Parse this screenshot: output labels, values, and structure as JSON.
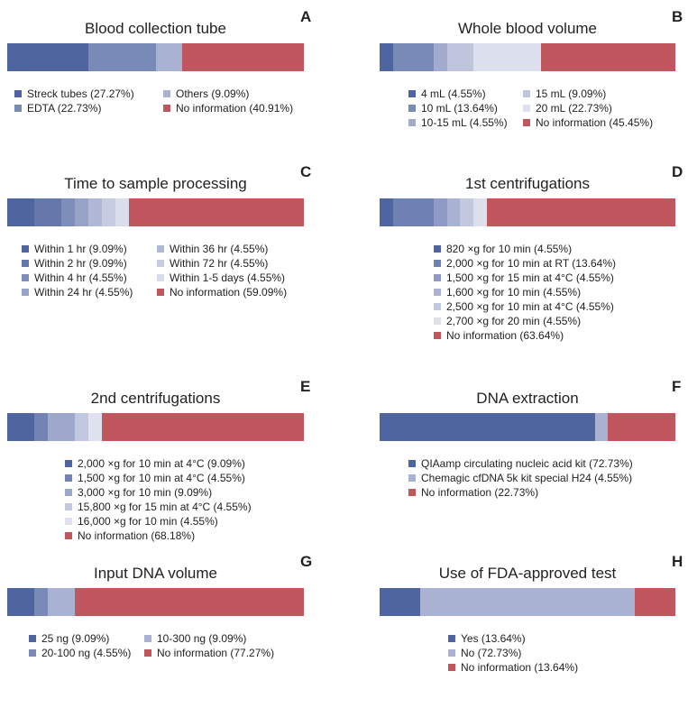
{
  "chart_data": [
    {
      "type": "bar",
      "letter": "A",
      "title": "Blood collection tube",
      "series": [
        {
          "name": "Streck tubes",
          "label": "Streck tubes (27.27%)",
          "value": 27.27,
          "color": "#4e65a0"
        },
        {
          "name": "EDTA",
          "label": "EDTA (22.73%)",
          "value": 22.73,
          "color": "#7a8ab7"
        },
        {
          "name": "Others",
          "label": "Others (9.09%)",
          "value": 9.09,
          "color": "#a9b2d2"
        },
        {
          "name": "No information",
          "label": "No information (40.91%)",
          "value": 40.91,
          "color": "#c0565e"
        }
      ]
    },
    {
      "type": "bar",
      "letter": "B",
      "title": "Whole blood volume",
      "series": [
        {
          "name": "4 mL",
          "label": "4 mL (4.55%)",
          "value": 4.55,
          "color": "#4e65a0"
        },
        {
          "name": "10 mL",
          "label": "10 mL (13.64%)",
          "value": 13.64,
          "color": "#7a8ab7"
        },
        {
          "name": "10-15 mL",
          "label": "10-15 mL (4.55%)",
          "value": 4.55,
          "color": "#a2abcd"
        },
        {
          "name": "15 mL",
          "label": "15 mL (9.09%)",
          "value": 9.09,
          "color": "#bfc5dd"
        },
        {
          "name": "20 mL",
          "label": "20 mL (22.73%)",
          "value": 22.73,
          "color": "#dcdfec"
        },
        {
          "name": "No information",
          "label": "No information (45.45%)",
          "value": 45.45,
          "color": "#c0565e"
        }
      ]
    },
    {
      "type": "bar",
      "letter": "C",
      "title": "Time to sample processing",
      "series": [
        {
          "name": "Within 1 hr",
          "label": "Within 1 hr (9.09%)",
          "value": 9.09,
          "color": "#4e65a0"
        },
        {
          "name": "Within 2 hr",
          "label": "Within 2 hr (9.09%)",
          "value": 9.09,
          "color": "#6677ab"
        },
        {
          "name": "Within 4 hr",
          "label": "Within 4 hr (4.55%)",
          "value": 4.55,
          "color": "#7f8dba"
        },
        {
          "name": "Within 24 hr",
          "label": "Within 24 hr (4.55%)",
          "value": 4.55,
          "color": "#98a3c8"
        },
        {
          "name": "Within 36 hr",
          "label": "Within 36 hr (4.55%)",
          "value": 4.55,
          "color": "#b0b8d6"
        },
        {
          "name": "Within 72 hr",
          "label": "Within 72 hr (4.55%)",
          "value": 4.55,
          "color": "#c6cce2"
        },
        {
          "name": "Within 1-5 days",
          "label": "Within 1-5 days (4.55%)",
          "value": 4.55,
          "color": "#dadeec"
        },
        {
          "name": "No information",
          "label": "No information (59.09%)",
          "value": 59.09,
          "color": "#c0565e"
        }
      ]
    },
    {
      "type": "bar",
      "letter": "D",
      "title": "1st centrifugations",
      "series": [
        {
          "name": "820 ×g for 10 min",
          "label": "820 ×g for 10 min (4.55%)",
          "value": 4.55,
          "color": "#4e65a0"
        },
        {
          "name": "2,000 ×g for 10 min at RT",
          "label": "2,000 ×g for 10 min at RT (13.64%)",
          "value": 13.64,
          "color": "#6f80b2"
        },
        {
          "name": "1,500 ×g for 15 min at 4°C",
          "label": "1,500 ×g for 15 min at 4°C (4.55%)",
          "value": 4.55,
          "color": "#8f9bc4"
        },
        {
          "name": "1,600 ×g for 10 min",
          "label": "1,600 ×g for 10 min (4.55%)",
          "value": 4.55,
          "color": "#a9b2d2"
        },
        {
          "name": "2,500 ×g for 10 min at 4°C",
          "label": "2,500 ×g for 10 min at 4°C (4.55%)",
          "value": 4.55,
          "color": "#c2c8df"
        },
        {
          "name": "2,700 ×g for 20 min",
          "label": "2,700 ×g for 20 min (4.55%)",
          "value": 4.55,
          "color": "#dcdfec"
        },
        {
          "name": "No information",
          "label": "No information (63.64%)",
          "value": 63.64,
          "color": "#c0565e"
        }
      ]
    },
    {
      "type": "bar",
      "letter": "E",
      "title": "2nd centrifugations",
      "series": [
        {
          "name": "2,000 ×g for 10 min at 4°C",
          "label": "2,000 ×g for 10 min at 4°C (9.09%)",
          "value": 9.09,
          "color": "#4e65a0"
        },
        {
          "name": "1,500 ×g for 10 min at 4°C",
          "label": "1,500 ×g for 10 min at 4°C (4.55%)",
          "value": 4.55,
          "color": "#7483b4"
        },
        {
          "name": "3,000 ×g for 10 min",
          "label": "3,000 ×g for 10 min (9.09%)",
          "value": 9.09,
          "color": "#9ea8cb"
        },
        {
          "name": "15,800 ×g for 15 min at 4°C",
          "label": "15,800 ×g for 15 min at 4°C (4.55%)",
          "value": 4.55,
          "color": "#c2c8df"
        },
        {
          "name": "16,000 ×g for 10 min",
          "label": "16,000 ×g for 10 min (4.55%)",
          "value": 4.55,
          "color": "#dfe2ee"
        },
        {
          "name": "No information",
          "label": "No information (68.18%)",
          "value": 68.18,
          "color": "#c0565e"
        }
      ]
    },
    {
      "type": "bar",
      "letter": "F",
      "title": "DNA extraction",
      "series": [
        {
          "name": "QIAamp circulating nucleic acid kit",
          "label": "QIAamp circulating nucleic acid kit (72.73%)",
          "value": 72.73,
          "color": "#4e65a0"
        },
        {
          "name": "Chemagic cfDNA 5k kit special H24",
          "label": "Chemagic cfDNA 5k kit special H24 (4.55%)",
          "value": 4.55,
          "color": "#a9b2d2"
        },
        {
          "name": "No information",
          "label": "No information (22.73%)",
          "value": 22.73,
          "color": "#c0565e"
        }
      ]
    },
    {
      "type": "bar",
      "letter": "G",
      "title": "Input DNA volume",
      "series": [
        {
          "name": "25 ng",
          "label": "25 ng (9.09%)",
          "value": 9.09,
          "color": "#4e65a0"
        },
        {
          "name": "20-100 ng",
          "label": "20-100 ng (4.55%)",
          "value": 4.55,
          "color": "#7a8ab7"
        },
        {
          "name": "10-300 ng",
          "label": "10-300 ng (9.09%)",
          "value": 9.09,
          "color": "#a9b2d2"
        },
        {
          "name": "No information",
          "label": "No information (77.27%)",
          "value": 77.27,
          "color": "#c0565e"
        }
      ]
    },
    {
      "type": "bar",
      "letter": "H",
      "title": "Use of FDA-approved test",
      "series": [
        {
          "name": "Yes",
          "label": "Yes (13.64%)",
          "value": 13.64,
          "color": "#4e65a0"
        },
        {
          "name": "No",
          "label": "No (72.73%)",
          "value": 72.73,
          "color": "#a9b2d2"
        },
        {
          "name": "No information",
          "label": "No information (13.64%)",
          "value": 13.64,
          "color": "#c0565e"
        }
      ]
    }
  ]
}
